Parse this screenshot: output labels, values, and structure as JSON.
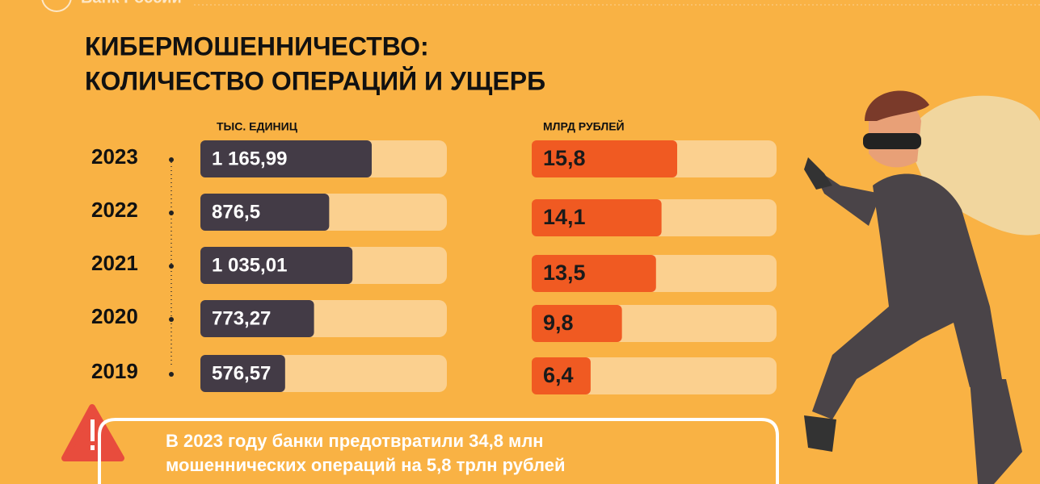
{
  "header": {
    "logo": "Банк России",
    "title": [
      "КИБЕРМОШЕННИЧЕСТВО:",
      "КОЛИЧЕСТВО ОПЕРАЦИЙ И УЩЕРБ"
    ]
  },
  "chart_data": [
    {
      "type": "bar",
      "orientation": "horizontal",
      "unit_label": "ТЫС. ЕДИНИЦ",
      "categories": [
        "2023",
        "2022",
        "2021",
        "2020",
        "2019"
      ],
      "values": [
        1165.99,
        876.5,
        1035.01,
        773.27,
        576.57
      ],
      "value_labels": [
        "1 165,99",
        "876,5",
        "1 035,01",
        "773,27",
        "576,57"
      ],
      "color": "#433b46",
      "label_color": "#ffffff"
    },
    {
      "type": "bar",
      "orientation": "horizontal",
      "unit_label": "МЛРД РУБЛЕЙ",
      "values": [
        15.8,
        14.1,
        13.5,
        9.8,
        6.4
      ],
      "value_labels": [
        "15,8",
        "14,1",
        "13,5",
        "9,8",
        "6,4"
      ],
      "color": "#f05a22",
      "label_color": "#1a1a1a"
    }
  ],
  "notice": {
    "lines": [
      "В 2023 году банки предотвратили 34,8 млн",
      "мошеннических операций на 5,8 трлн рублей"
    ]
  }
}
